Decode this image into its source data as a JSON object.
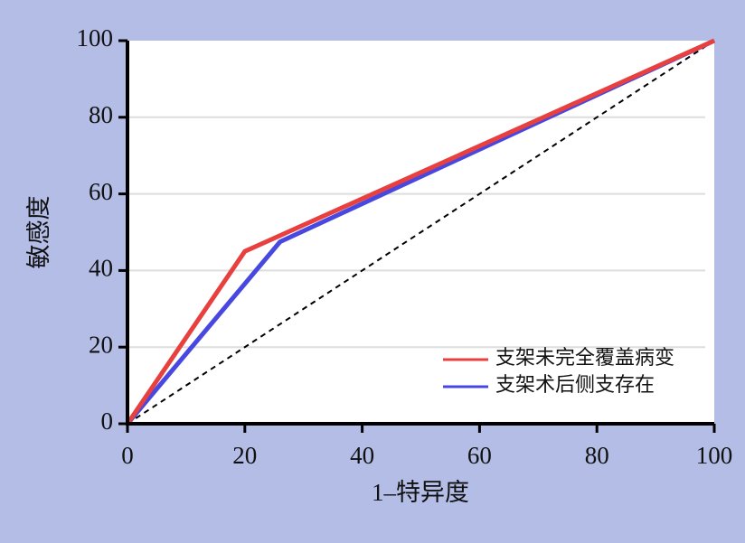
{
  "chart_data": {
    "type": "line",
    "xlabel": "1–特异度",
    "ylabel": "敏感度",
    "series": [
      {
        "name": "支架未完全覆盖病变",
        "color": "#e8403f",
        "x": [
          0,
          20,
          100
        ],
        "values": [
          0,
          45,
          100
        ]
      },
      {
        "name": "支架术后侧支存在",
        "color": "#4848e0",
        "x": [
          0,
          26,
          100
        ],
        "values": [
          0,
          47.5,
          100
        ]
      }
    ],
    "xlim": [
      0,
      100
    ],
    "ylim": [
      0,
      100
    ],
    "xticks": [
      0,
      20,
      40,
      60,
      80,
      100
    ],
    "yticks": [
      0,
      20,
      40,
      60,
      80,
      100
    ],
    "grid": true,
    "legend": "lower right",
    "reference_line": true
  }
}
